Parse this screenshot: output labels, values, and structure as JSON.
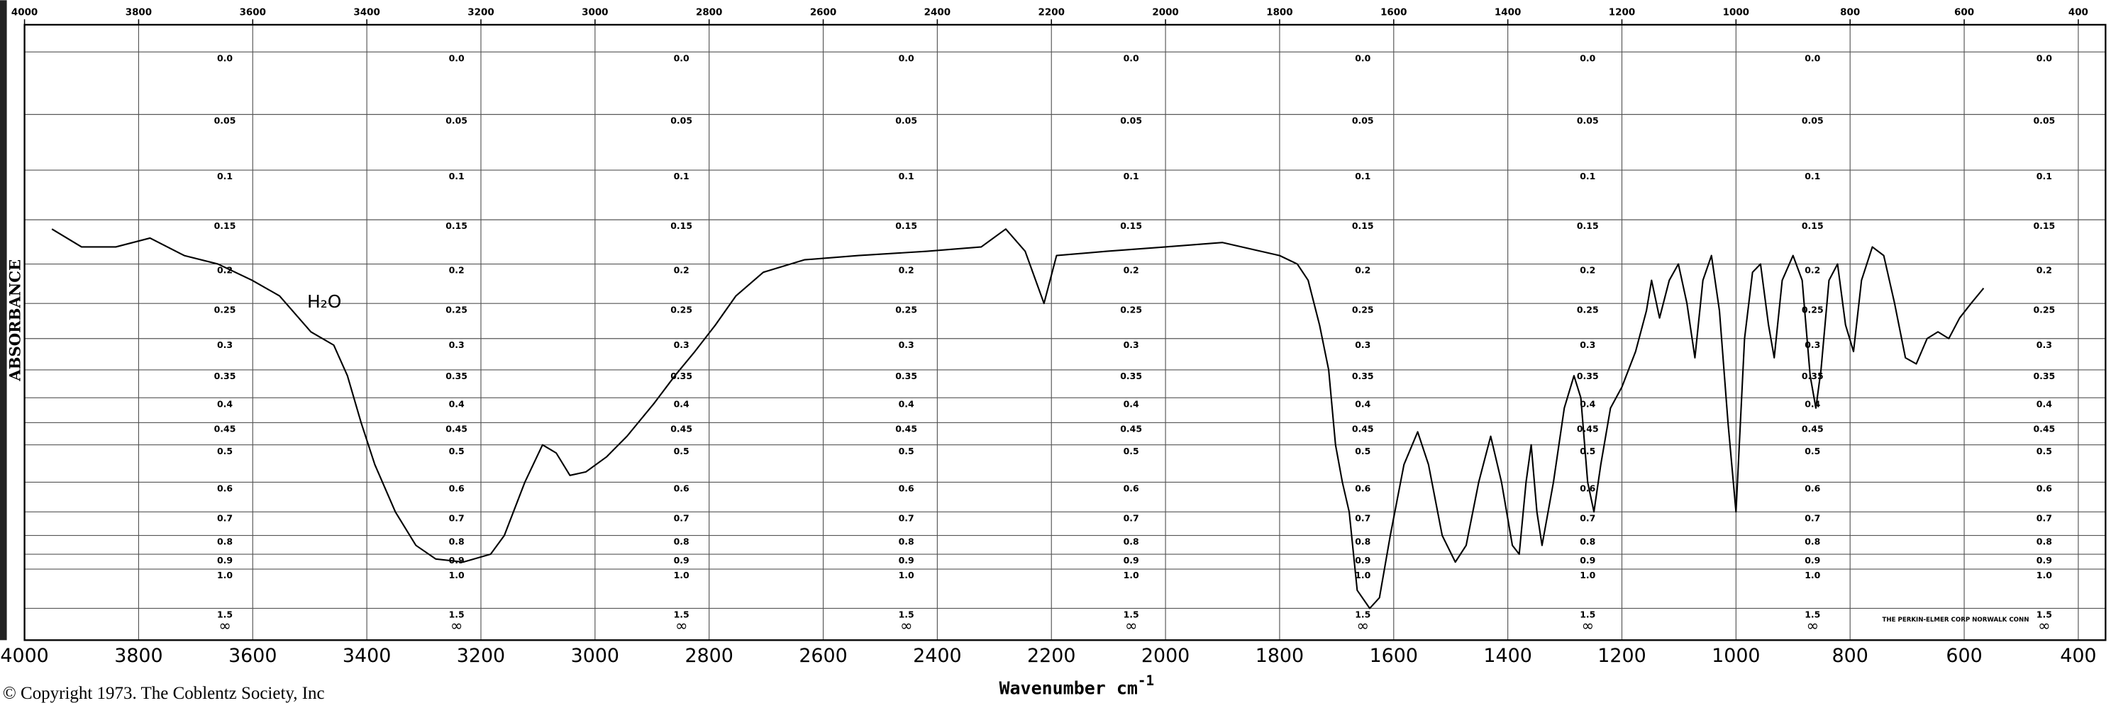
{
  "chart_data": {
    "type": "line",
    "ylabel": "ABSORBANCE",
    "xlabel": "Wavenumber cm",
    "xlabel_superscript": "-1",
    "annotation": "H₂O",
    "copyright": "© Copyright 1973. The Coblentz Society, Inc",
    "imprint": "THE PERKIN-ELMER CORP NORWALK CONN",
    "bottom_label": "∞",
    "yscale": "transmittance",
    "grid": true,
    "xlim": [
      4000,
      400
    ],
    "xticks": [
      4000,
      3800,
      3600,
      3400,
      3200,
      3000,
      2800,
      2600,
      2400,
      2200,
      2000,
      1800,
      1600,
      1400,
      1200,
      1000,
      800,
      600,
      400
    ],
    "x2ticks": [
      4000,
      3800,
      3600,
      3400,
      3200,
      3000,
      2800,
      2600,
      2400,
      2200,
      2000,
      1800,
      1600,
      1400,
      1200,
      1000,
      800,
      600,
      400
    ],
    "ylim": [
      0,
      1.5
    ],
    "yticks": [
      {
        "value": 0,
        "label": "0.0"
      },
      0.05,
      0.1,
      0.15,
      0.2,
      0.25,
      0.3,
      0.35,
      0.4,
      0.45,
      0.5,
      0.6,
      0.7,
      0.8,
      0.9,
      {
        "value": 1,
        "label": "1.0"
      },
      1.5
    ],
    "x": [
      3952,
      3900,
      3840,
      3780,
      3720,
      3661,
      3601,
      3553,
      3498,
      3458,
      3434,
      3410,
      3386,
      3350,
      3314,
      3279,
      3231,
      3183,
      3159,
      3123,
      3092,
      3068,
      3044,
      3016,
      2980,
      2944,
      2896,
      2860,
      2825,
      2789,
      2753,
      2705,
      2633,
      2538,
      2418,
      2323,
      2280,
      2246,
      2213,
      2191,
      2103,
      2000,
      1900,
      1800,
      1769,
      1750,
      1730,
      1714,
      1702,
      1690,
      1678,
      1664,
      1642,
      1625,
      1606,
      1582,
      1558,
      1539,
      1515,
      1492,
      1473,
      1451,
      1430,
      1411,
      1392,
      1380,
      1368,
      1359,
      1349,
      1340,
      1320,
      1301,
      1284,
      1272,
      1260,
      1249,
      1237,
      1220,
      1200,
      1176,
      1157,
      1148,
      1134,
      1117,
      1101,
      1086,
      1072,
      1058,
      1043,
      1029,
      1014,
      1000,
      985,
      971,
      957,
      943,
      933,
      919,
      900,
      884,
      870,
      860,
      851,
      837,
      822,
      808,
      794,
      780,
      761,
      741,
      722,
      703,
      684,
      665,
      646,
      627,
      608,
      588,
      566
    ],
    "series": [
      {
        "color": "#000000",
        "values": [
          0.16,
          0.18,
          0.18,
          0.17,
          0.19,
          0.2,
          0.22,
          0.24,
          0.29,
          0.31,
          0.36,
          0.45,
          0.55,
          0.7,
          0.85,
          0.93,
          0.95,
          0.9,
          0.8,
          0.6,
          0.5,
          0.52,
          0.58,
          0.57,
          0.53,
          0.48,
          0.41,
          0.36,
          0.32,
          0.28,
          0.24,
          0.21,
          0.195,
          0.19,
          0.185,
          0.18,
          0.16,
          0.185,
          0.25,
          0.19,
          0.185,
          0.18,
          0.175,
          0.19,
          0.2,
          0.22,
          0.28,
          0.35,
          0.5,
          0.6,
          0.7,
          1.2,
          1.5,
          1.3,
          0.8,
          0.55,
          0.47,
          0.55,
          0.8,
          0.95,
          0.85,
          0.6,
          0.48,
          0.6,
          0.85,
          0.9,
          0.6,
          0.5,
          0.7,
          0.85,
          0.6,
          0.42,
          0.36,
          0.4,
          0.6,
          0.7,
          0.55,
          0.42,
          0.38,
          0.32,
          0.26,
          0.22,
          0.27,
          0.22,
          0.2,
          0.25,
          0.33,
          0.22,
          0.19,
          0.26,
          0.45,
          0.7,
          0.3,
          0.21,
          0.2,
          0.28,
          0.33,
          0.22,
          0.19,
          0.22,
          0.36,
          0.42,
          0.35,
          0.22,
          0.2,
          0.28,
          0.32,
          0.22,
          0.18,
          0.19,
          0.25,
          0.33,
          0.34,
          0.3,
          0.29,
          0.3,
          0.27,
          0.25,
          0.23
        ]
      }
    ]
  }
}
